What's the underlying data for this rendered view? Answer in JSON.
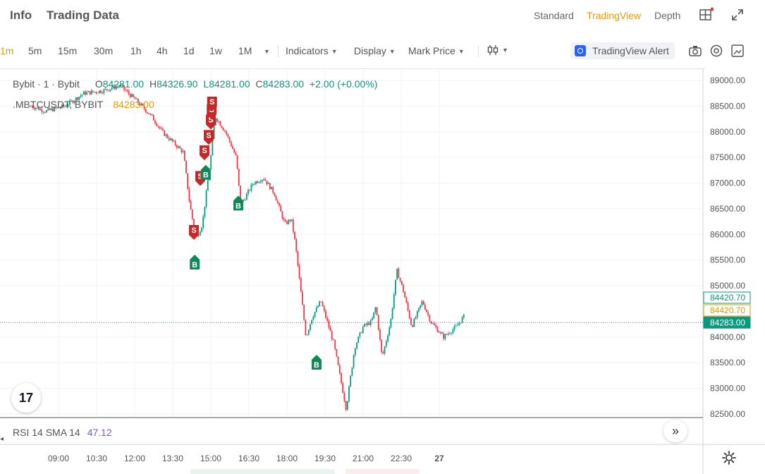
{
  "header": {
    "tabs": [
      "Info",
      "Trading Data"
    ],
    "views": [
      "Standard",
      "TradingView",
      "Depth"
    ],
    "active_view": "TradingView",
    "icons": [
      "layout-grid-icon",
      "fullscreen-icon"
    ]
  },
  "toolbar": {
    "timeframes": [
      "1m",
      "5m",
      "15m",
      "30m",
      "1h",
      "4h",
      "1d",
      "1w",
      "1M"
    ],
    "active_timeframe": "1m",
    "indicators_label": "Indicators",
    "display_label": "Display",
    "mark_price_label": "Mark Price",
    "alert_label": "TradingView Alert",
    "icons": [
      "chart-type-icon",
      "camera-icon",
      "eye-icon",
      "screenshot-icon"
    ]
  },
  "legend": {
    "source": "Bybit · 1 · Bybit",
    "open_label": "O",
    "open": "84281.00",
    "high_label": "H",
    "high": "84326.90",
    "low_label": "L",
    "low": "84281.00",
    "close_label": "C",
    "close": "84283.00",
    "change": "+2.00 (+0.00%)",
    "symbol": ".MBTCUSDT, BYBIT",
    "symbol_value": "84283.00"
  },
  "rsi": {
    "label": "RSI 14 SMA 14",
    "value": "47.12"
  },
  "price_tags": {
    "green": "84420.70",
    "orange": "84420.70",
    "last": "84283.00"
  },
  "colors": {
    "up": "#089981",
    "down": "#f23645",
    "accent": "#e29b00",
    "sell_marker": "#c62828",
    "buy_marker": "#0b8a57"
  },
  "chart_data": {
    "type": "line",
    "ylim": [
      82500,
      89000
    ],
    "y_ticks": [
      "89000.00",
      "88500.00",
      "88000.00",
      "87500.00",
      "87000.00",
      "86500.00",
      "86000.00",
      "85500.00",
      "85000.00",
      "84000.00",
      "83500.00",
      "83000.00",
      "82500.00"
    ],
    "x_ticks": [
      "09:00",
      "10:30",
      "12:00",
      "13:30",
      "15:00",
      "16:30",
      "18:00",
      "19:30",
      "21:00",
      "22:30",
      "27"
    ],
    "price_series": {
      "name": ".MBTCUSDT",
      "x": [
        "07:55",
        "08:30",
        "09:15",
        "10:00",
        "10:45",
        "11:25",
        "12:05",
        "12:40",
        "13:05",
        "13:30",
        "13:55",
        "14:10",
        "14:25",
        "14:40",
        "15:00",
        "15:10",
        "15:35",
        "16:00",
        "16:10",
        "16:20",
        "16:40",
        "17:05",
        "17:30",
        "17:55",
        "18:10",
        "18:20",
        "18:45",
        "19:00",
        "19:20",
        "19:50",
        "20:20",
        "20:40",
        "21:00",
        "21:20",
        "21:30",
        "21:45",
        "22:05",
        "22:20",
        "22:35",
        "22:55",
        "23:20",
        "23:40",
        "00:10",
        "00:40",
        "01:00"
      ],
      "y": [
        88500,
        88400,
        88500,
        88750,
        88800,
        88900,
        88600,
        88300,
        88000,
        87800,
        87600,
        86600,
        85900,
        86200,
        87500,
        88300,
        88000,
        87500,
        86600,
        86700,
        87000,
        87100,
        86800,
        86200,
        86300,
        85800,
        84000,
        84400,
        84700,
        83900,
        82600,
        83800,
        84200,
        84300,
        84600,
        83600,
        84300,
        85300,
        84900,
        84200,
        84700,
        84300,
        84000,
        84200,
        84420.7
      ]
    },
    "trade_markers": [
      {
        "type": "S",
        "time": "14:20",
        "price": 85950
      },
      {
        "type": "B",
        "time": "14:22",
        "price": 85550
      },
      {
        "type": "S",
        "time": "14:35",
        "price": 87000
      },
      {
        "type": "S",
        "time": "14:45",
        "price": 87500
      },
      {
        "type": "B",
        "time": "14:48",
        "price": 87300
      },
      {
        "type": "S",
        "time": "14:55",
        "price": 87800
      },
      {
        "type": "S",
        "time": "15:00",
        "price": 88100
      },
      {
        "type": "S",
        "time": "15:02",
        "price": 88300
      },
      {
        "type": "S",
        "time": "15:03",
        "price": 88450
      },
      {
        "type": "B",
        "time": "16:05",
        "price": 86700
      },
      {
        "type": "B",
        "time": "19:10",
        "price": 83600
      }
    ]
  }
}
